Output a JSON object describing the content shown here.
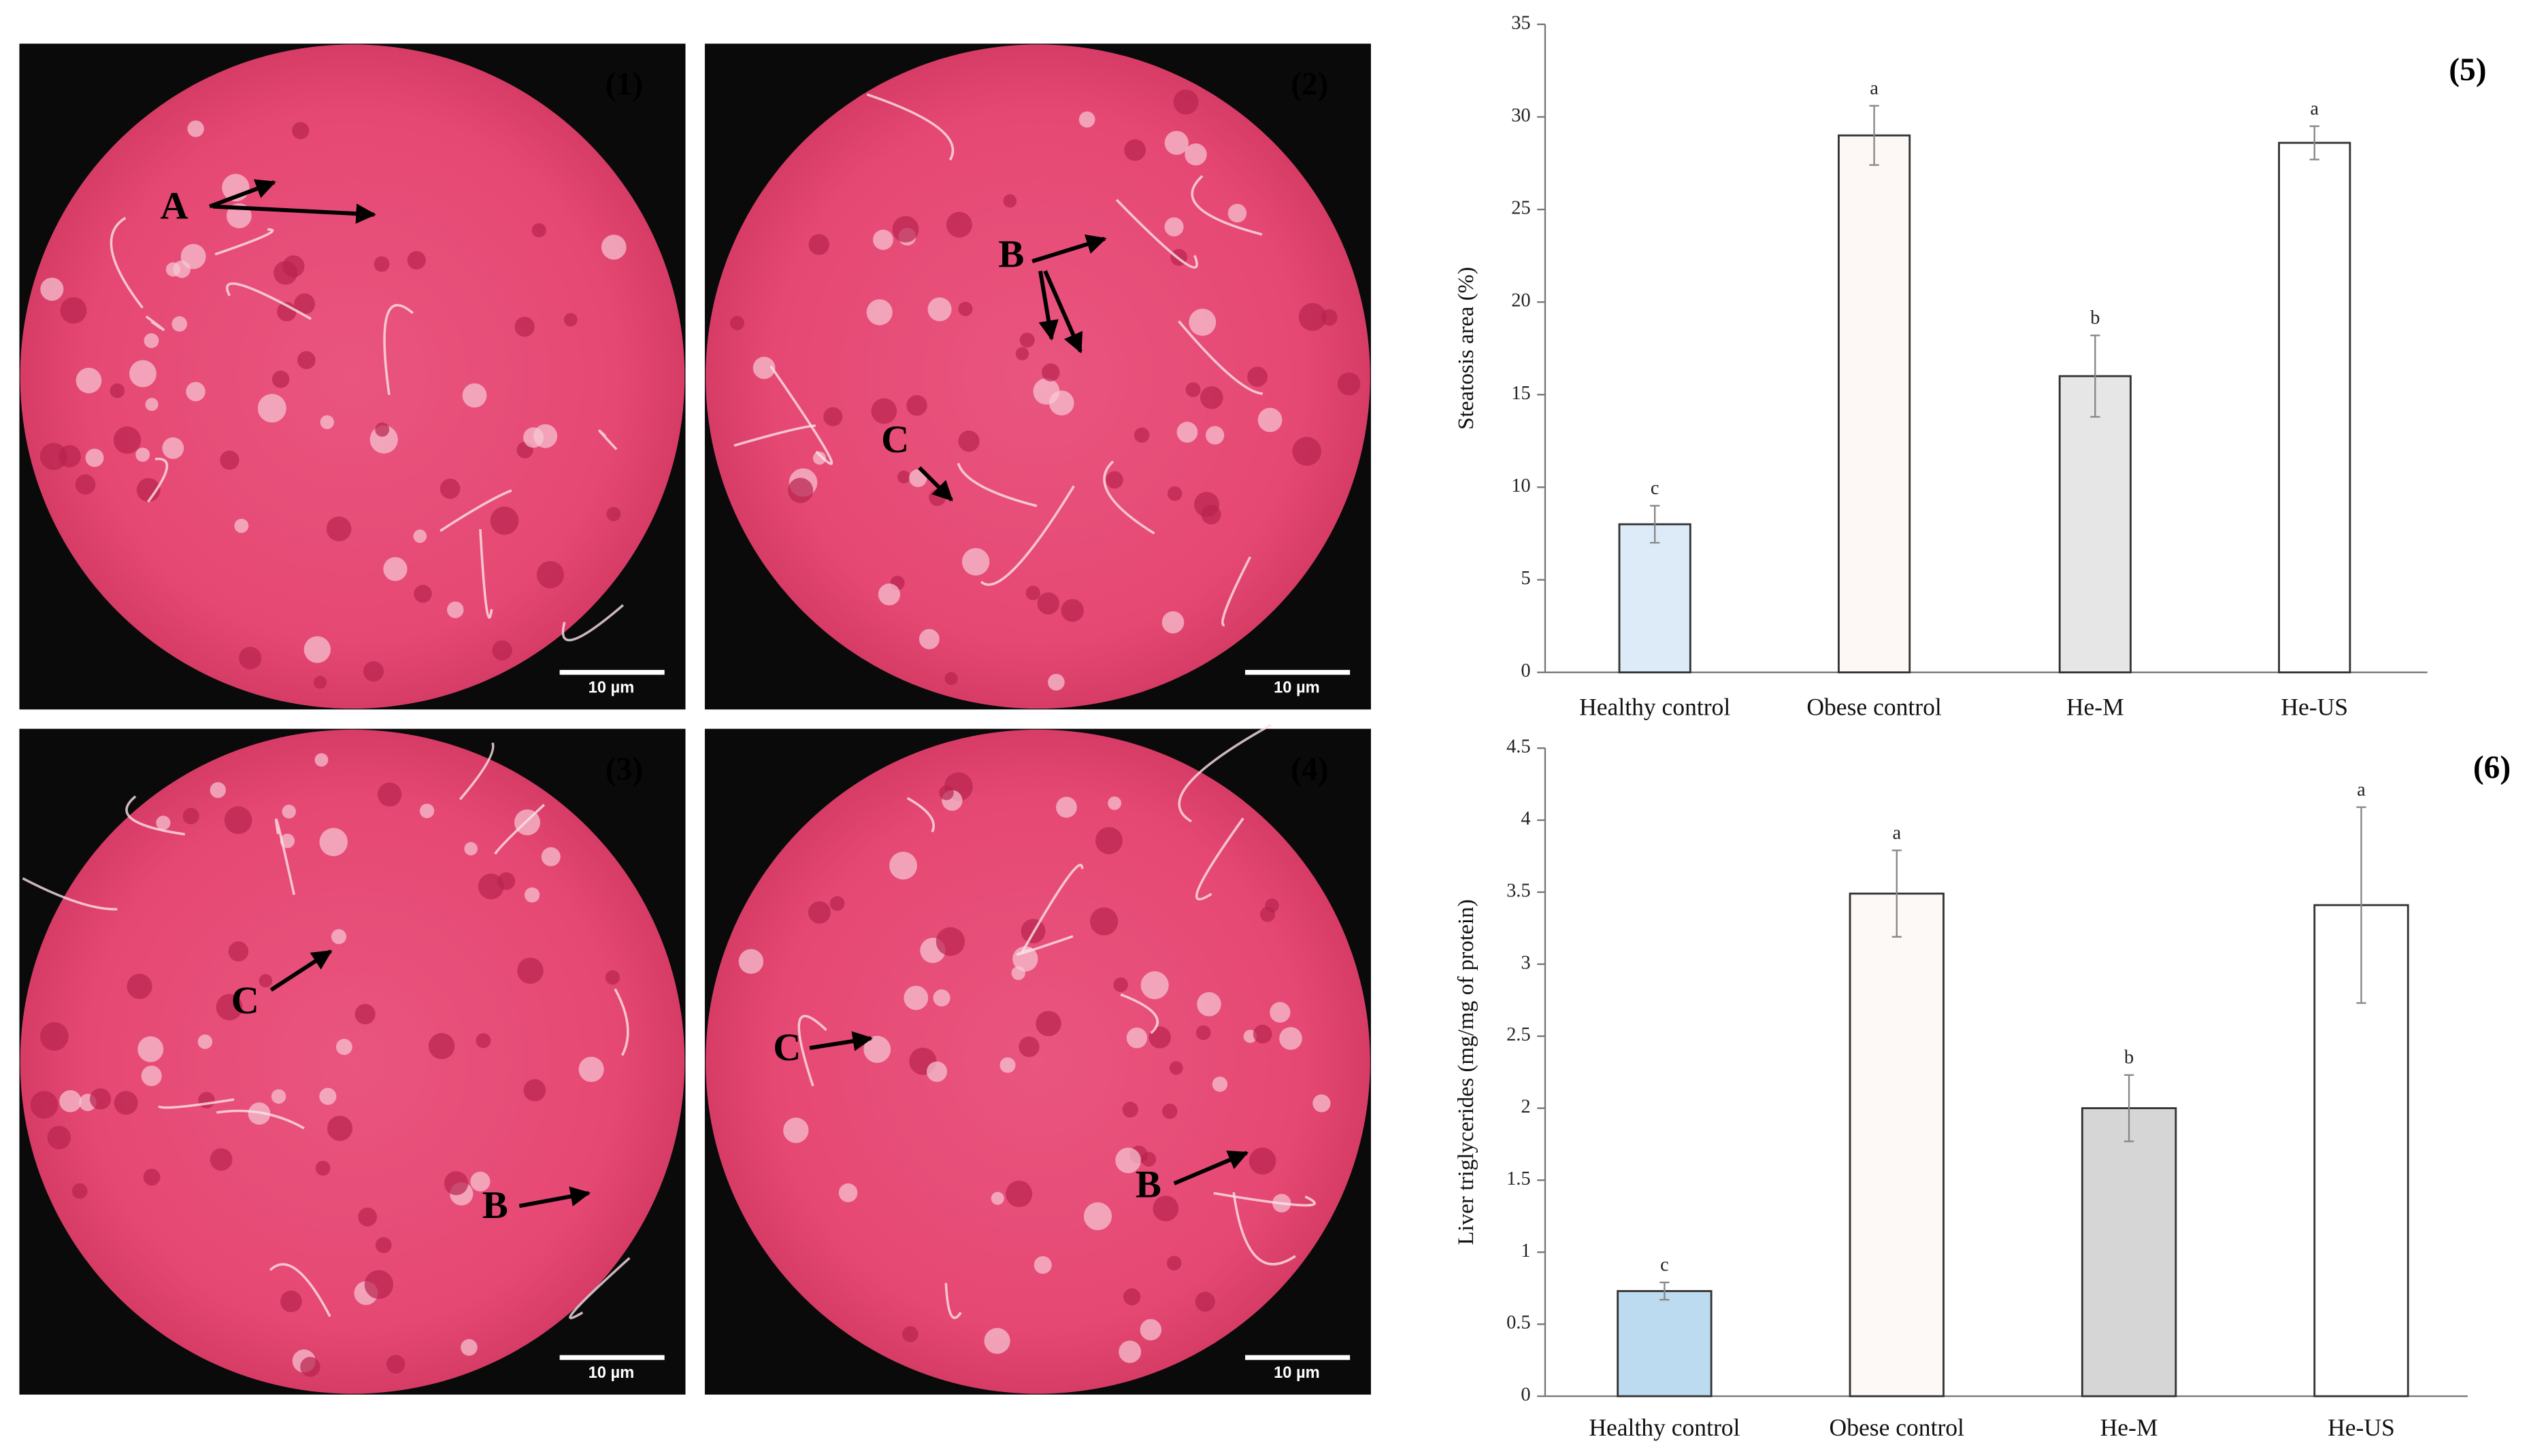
{
  "micrographs": [
    {
      "label": "(1)",
      "scale": "10 µm",
      "markers": [
        "A"
      ]
    },
    {
      "label": "(2)",
      "scale": "10 µm",
      "markers": [
        "B",
        "C"
      ]
    },
    {
      "label": "(3)",
      "scale": "10 µm",
      "markers": [
        "C",
        "B"
      ]
    },
    {
      "label": "(4)",
      "scale": "10 µm",
      "markers": [
        "C",
        "B"
      ]
    }
  ],
  "chart_data": [
    {
      "type": "bar",
      "panel": "(5)",
      "y_label": "Steatosis area (%)",
      "categories": [
        "Healthy control",
        "Obese control",
        "He-M",
        "He-US"
      ],
      "values": [
        8,
        29,
        16,
        28.6
      ],
      "errors": [
        1,
        1.6,
        2.2,
        0.9
      ],
      "annotations": [
        "c",
        "a",
        "b",
        "a"
      ],
      "colors": [
        "#dcebf7",
        "#fdf8f6",
        "#e6e6e6",
        "#ffffff"
      ],
      "ylim": [
        0,
        35
      ],
      "yticks": [
        0,
        5,
        10,
        15,
        20,
        25,
        30,
        35
      ]
    },
    {
      "type": "bar",
      "panel": "(6)",
      "y_label": "Liver triglycerides (mg/mg of protein)",
      "categories": [
        "Healthy control",
        "Obese control",
        "He-M",
        "He-US"
      ],
      "values": [
        0.73,
        3.49,
        2,
        3.41
      ],
      "errors": [
        0.06,
        0.3,
        0.23,
        0.68
      ],
      "annotations": [
        "c",
        "a",
        "b",
        "a"
      ],
      "colors": [
        "#bcdbf0",
        "#fdf9f7",
        "#d6d6d6",
        "#ffffff"
      ],
      "ylim": [
        0,
        4.5
      ],
      "yticks": [
        0,
        0.5,
        1,
        1.5,
        2,
        2.5,
        3,
        3.5,
        4,
        4.5
      ]
    }
  ]
}
